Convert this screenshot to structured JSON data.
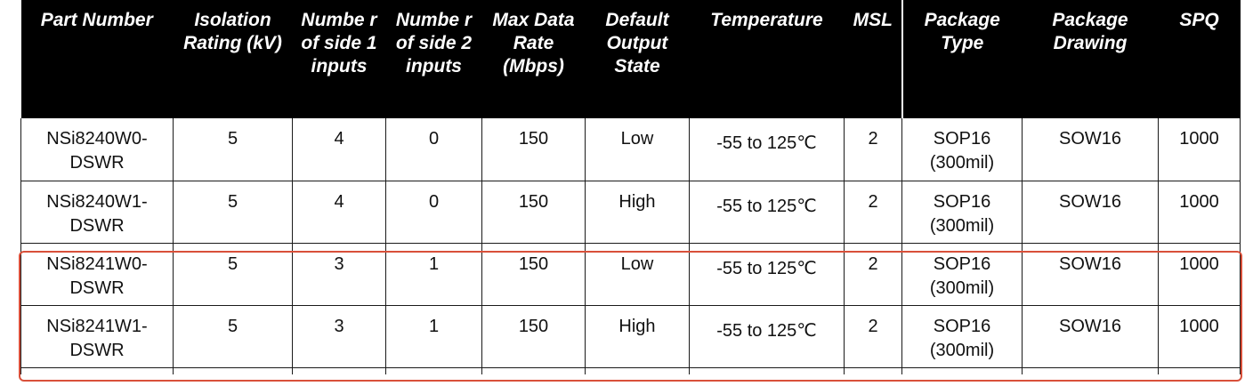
{
  "table": {
    "headers": [
      "Part Number",
      "Isolation Rating (kV)",
      "Numbe r of side 1 inputs",
      "Numbe r of side 2 inputs",
      "Max Data Rate (Mbps)",
      "Default Output State",
      "Temperature",
      "MSL",
      "Package Type",
      "Package Drawing",
      "SPQ"
    ],
    "rows": [
      [
        "NSi8240W0-DSWR",
        "5",
        "4",
        "0",
        "150",
        "Low",
        "-55 to 125℃",
        "2",
        "SOP16 (300mil)",
        "SOW16",
        "1000"
      ],
      [
        "NSi8240W1-DSWR",
        "5",
        "4",
        "0",
        "150",
        "High",
        "-55 to 125℃",
        "2",
        "SOP16 (300mil)",
        "SOW16",
        "1000"
      ],
      [
        "NSi8241W0-DSWR",
        "5",
        "3",
        "1",
        "150",
        "Low",
        "-55 to 125℃",
        "2",
        "SOP16 (300mil)",
        "SOW16",
        "1000"
      ],
      [
        "NSi8241W1-DSWR",
        "5",
        "3",
        "1",
        "150",
        "High",
        "-55 to 125℃",
        "2",
        "SOP16 (300mil)",
        "SOW16",
        "1000"
      ]
    ],
    "highlighted_rows": [
      2,
      3
    ],
    "highlight_color": "#d9503a"
  }
}
